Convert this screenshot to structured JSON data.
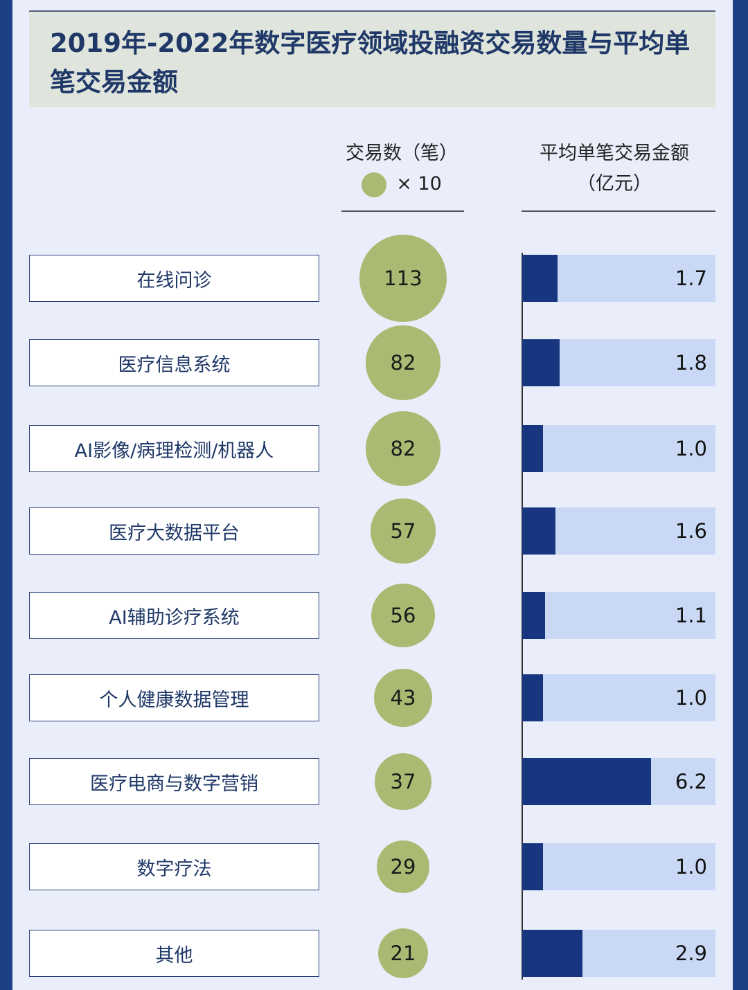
{
  "chart_data": {
    "type": "table",
    "title": "2019年-2022年数字医疗领域投融资交易数量与平均单笔交易金额",
    "columns": {
      "count": {
        "header": "交易数（笔）",
        "legend_multiplier": "× 10"
      },
      "amount": {
        "header_line1": "平均单笔交易金额",
        "header_line2": "（亿元）"
      }
    },
    "categories": [
      "在线问诊",
      "医疗信息系统",
      "AI影像/病理检测/机器人",
      "医疗大数据平台",
      "AI辅助诊疗系统",
      "个人健康数据管理",
      "医疗电商与数字营销",
      "数字疗法",
      "其他"
    ],
    "series": [
      {
        "name": "交易数（笔）",
        "values": [
          113,
          82,
          82,
          57,
          56,
          43,
          37,
          29,
          21
        ]
      },
      {
        "name": "平均单笔交易金额（亿元）",
        "values": [
          "1.7",
          "1.8",
          "1.0",
          "1.6",
          "1.1",
          "1.0",
          "6.2",
          "1.0",
          "2.9"
        ]
      }
    ],
    "amount_max": 9.3
  },
  "colors": {
    "circle": "#a9bb72",
    "bar": "#183680",
    "track": "#c9d8f5"
  }
}
